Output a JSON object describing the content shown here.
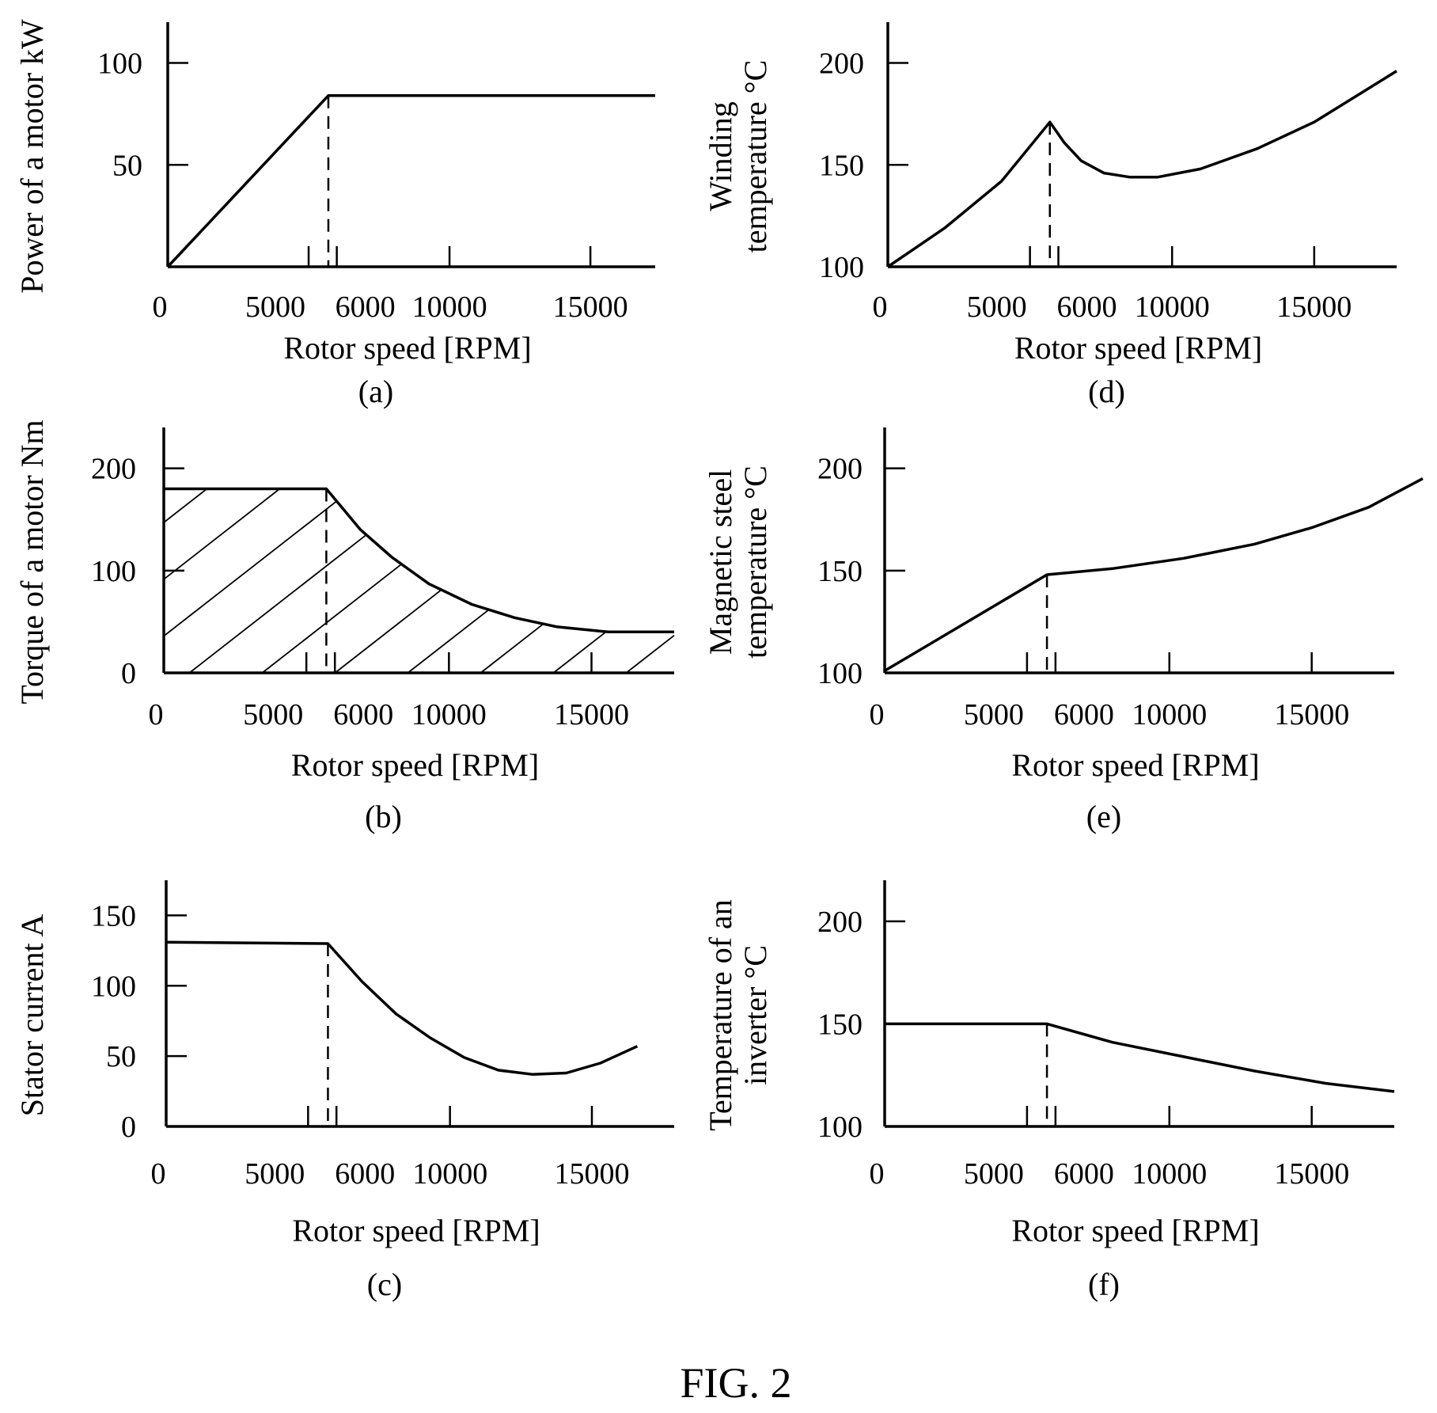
{
  "figure_caption": "FIG. 2",
  "chart_data": [
    {
      "id": "a",
      "type": "line",
      "caption": "(a)",
      "xlabel": "Rotor speed [RPM]",
      "ylabel_lines": [
        "Power of a motor kW"
      ],
      "x_ticks": [
        0,
        5000,
        6000,
        10000,
        15000
      ],
      "x_tick_labels": [
        "0",
        "5000",
        "6000",
        "10000",
        "15000"
      ],
      "y_ticks": [
        100,
        50
      ],
      "y_tick_labels": [
        "100",
        "50"
      ],
      "xlim": [
        0,
        17300
      ],
      "ylim": [
        0,
        120
      ],
      "dashed_x": 5700,
      "hatched": false,
      "series": [
        {
          "x": [
            0,
            5700,
            17300
          ],
          "y": [
            0,
            84,
            84
          ]
        }
      ]
    },
    {
      "id": "b",
      "type": "area",
      "caption": "(b)",
      "xlabel": "Rotor speed [RPM]",
      "ylabel_lines": [
        "Torque of a motor Nm"
      ],
      "x_ticks": [
        0,
        5000,
        6000,
        10000,
        15000
      ],
      "x_tick_labels": [
        "0",
        "5000",
        "6000",
        "10000",
        "15000"
      ],
      "y_ticks": [
        200,
        100,
        0
      ],
      "y_tick_labels": [
        "200",
        "100",
        "0"
      ],
      "xlim": [
        0,
        17900
      ],
      "ylim": [
        0,
        240
      ],
      "dashed_x": 5700,
      "hatched": true,
      "series": [
        {
          "x": [
            0,
            5700,
            6900,
            8000,
            9300,
            10800,
            12300,
            13800,
            15600,
            17900
          ],
          "y": [
            180,
            180,
            140,
            113,
            87,
            67,
            54,
            45,
            40,
            40
          ]
        }
      ]
    },
    {
      "id": "c",
      "type": "line",
      "caption": "(c)",
      "xlabel": "Rotor speed [RPM]",
      "ylabel_lines": [
        "Stator current A"
      ],
      "x_ticks": [
        0,
        5000,
        6000,
        10000,
        15000
      ],
      "x_tick_labels": [
        "0",
        "5000",
        "6000",
        "10000",
        "15000"
      ],
      "y_ticks": [
        150,
        100,
        50,
        0
      ],
      "y_tick_labels": [
        "150",
        "100",
        "50",
        "0"
      ],
      "xlim": [
        0,
        17900
      ],
      "ylim": [
        0,
        175
      ],
      "dashed_x": 5700,
      "hatched": false,
      "series": [
        {
          "x": [
            0,
            5700,
            6900,
            8100,
            9300,
            10500,
            11700,
            12900,
            14100,
            15300,
            16600
          ],
          "y": [
            131,
            130,
            103,
            80,
            63,
            49,
            40,
            37,
            38,
            45,
            57
          ]
        }
      ]
    },
    {
      "id": "d",
      "type": "line",
      "caption": "(d)",
      "xlabel": "Rotor speed [RPM]",
      "ylabel_lines": [
        "Winding",
        "temperature °C"
      ],
      "x_ticks": [
        0,
        5000,
        6000,
        10000,
        15000
      ],
      "x_tick_labels": [
        "0",
        "5000",
        "6000",
        "10000",
        "15000"
      ],
      "y_ticks": [
        200,
        150,
        100
      ],
      "y_tick_labels": [
        "200",
        "150",
        "100"
      ],
      "xlim": [
        0,
        17900
      ],
      "ylim": [
        100,
        220
      ],
      "dashed_x": 5700,
      "hatched": false,
      "series": [
        {
          "x": [
            0,
            2000,
            4000,
            5700,
            6200,
            6800,
            7600,
            8500,
            9500,
            11000,
            13000,
            15000,
            17900
          ],
          "y": [
            100,
            119,
            142,
            171,
            161,
            152,
            146,
            144,
            144,
            148,
            158,
            171,
            196
          ]
        }
      ]
    },
    {
      "id": "e",
      "type": "line",
      "caption": "(e)",
      "xlabel": "Rotor speed [RPM]",
      "ylabel_lines": [
        "Magnetic steel",
        "temperature °C"
      ],
      "x_ticks": [
        0,
        5000,
        6000,
        10000,
        15000
      ],
      "x_tick_labels": [
        "0",
        "5000",
        "6000",
        "10000",
        "15000"
      ],
      "y_ticks": [
        200,
        150,
        100
      ],
      "y_tick_labels": [
        "200",
        "150",
        "100"
      ],
      "xlim": [
        0,
        17900
      ],
      "ylim": [
        100,
        220
      ],
      "dashed_x": 5700,
      "hatched": false,
      "series": [
        {
          "x": [
            0,
            5700,
            8000,
            10500,
            13000,
            15000,
            17000,
            18900
          ],
          "y": [
            101,
            148,
            151,
            156,
            163,
            171,
            181,
            195
          ]
        }
      ]
    },
    {
      "id": "f",
      "type": "line",
      "caption": "(f)",
      "xlabel": "Rotor speed [RPM]",
      "ylabel_lines": [
        "Temperature of an",
        "inverter °C"
      ],
      "x_ticks": [
        0,
        5000,
        6000,
        10000,
        15000
      ],
      "x_tick_labels": [
        "0",
        "5000",
        "6000",
        "10000",
        "15000"
      ],
      "y_ticks": [
        200,
        150,
        100
      ],
      "y_tick_labels": [
        "200",
        "150",
        "100"
      ],
      "xlim": [
        0,
        17900
      ],
      "ylim": [
        100,
        220
      ],
      "dashed_x": 5700,
      "hatched": false,
      "series": [
        {
          "x": [
            0,
            5700,
            8000,
            10500,
            13000,
            15500,
            17900
          ],
          "y": [
            150,
            150,
            141,
            134,
            127,
            121,
            117
          ]
        }
      ]
    }
  ]
}
